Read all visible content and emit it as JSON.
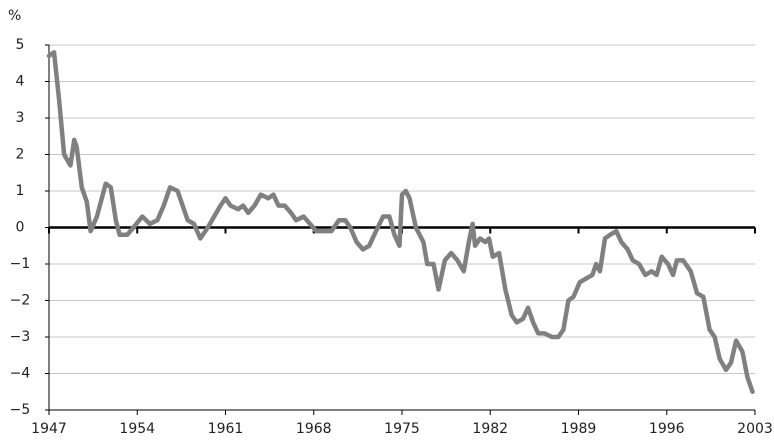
{
  "chart_data": {
    "type": "line",
    "y_unit": "%",
    "x": [
      1947.0,
      1947.4,
      1947.8,
      1948.2,
      1948.7,
      1949.0,
      1949.2,
      1949.6,
      1950.0,
      1950.3,
      1950.8,
      1951.5,
      1951.9,
      1952.3,
      1952.6,
      1953.2,
      1953.7,
      1954.4,
      1955.0,
      1955.6,
      1956.1,
      1956.6,
      1957.2,
      1957.6,
      1958.0,
      1958.5,
      1959.0,
      1959.6,
      1960.1,
      1960.6,
      1961.0,
      1961.4,
      1962.0,
      1962.4,
      1962.8,
      1963.3,
      1963.8,
      1964.4,
      1964.8,
      1965.2,
      1965.7,
      1966.2,
      1966.6,
      1967.2,
      1967.7,
      1968.2,
      1968.8,
      1969.4,
      1970.0,
      1970.5,
      1970.9,
      1971.4,
      1971.9,
      1972.4,
      1972.8,
      1973.5,
      1974.0,
      1974.4,
      1974.8,
      1975.0,
      1975.3,
      1975.6,
      1976.1,
      1976.7,
      1977.0,
      1977.5,
      1977.9,
      1978.4,
      1978.9,
      1979.4,
      1979.9,
      1980.3,
      1980.6,
      1980.8,
      1981.2,
      1981.6,
      1981.9,
      1982.2,
      1982.7,
      1983.2,
      1983.7,
      1984.1,
      1984.6,
      1985.0,
      1985.4,
      1985.8,
      1986.3,
      1986.9,
      1987.4,
      1987.8,
      1988.2,
      1988.6,
      1989.1,
      1989.6,
      1990.1,
      1990.4,
      1990.7,
      1991.1,
      1991.5,
      1992.0,
      1992.4,
      1992.9,
      1993.3,
      1993.8,
      1994.3,
      1994.8,
      1995.2,
      1995.6,
      1996.1,
      1996.5,
      1996.8,
      1997.3,
      1997.9,
      1998.4,
      1998.9,
      1999.4,
      1999.8,
      2000.2,
      2000.7,
      2001.1,
      2001.5,
      2002.0,
      2002.4,
      2002.8
    ],
    "series": [
      {
        "color": "#808080",
        "values": [
          4.7,
          4.8,
          3.5,
          2.0,
          1.7,
          2.4,
          2.2,
          1.1,
          0.7,
          -0.1,
          0.3,
          1.2,
          1.1,
          0.2,
          -0.2,
          -0.2,
          0.0,
          0.3,
          0.1,
          0.2,
          0.6,
          1.1,
          1.0,
          0.6,
          0.2,
          0.1,
          -0.3,
          0.0,
          0.3,
          0.6,
          0.8,
          0.6,
          0.5,
          0.6,
          0.4,
          0.6,
          0.9,
          0.8,
          0.9,
          0.6,
          0.6,
          0.4,
          0.2,
          0.3,
          0.1,
          -0.1,
          -0.1,
          -0.1,
          0.2,
          0.2,
          0.0,
          -0.4,
          -0.6,
          -0.5,
          -0.2,
          0.3,
          0.3,
          -0.2,
          -0.5,
          0.9,
          1.0,
          0.8,
          0.0,
          -0.4,
          -1.0,
          -1.0,
          -1.7,
          -0.9,
          -0.7,
          -0.9,
          -1.2,
          -0.4,
          0.1,
          -0.5,
          -0.3,
          -0.4,
          -0.3,
          -0.8,
          -0.7,
          -1.7,
          -2.4,
          -2.6,
          -2.5,
          -2.2,
          -2.6,
          -2.9,
          -2.9,
          -3.0,
          -3.0,
          -2.8,
          -2.0,
          -1.9,
          -1.5,
          -1.4,
          -1.3,
          -1.0,
          -1.2,
          -0.3,
          -0.2,
          -0.1,
          -0.4,
          -0.6,
          -0.9,
          -1.0,
          -1.3,
          -1.2,
          -1.3,
          -0.8,
          -1.0,
          -1.3,
          -0.9,
          -0.9,
          -1.2,
          -1.8,
          -1.9,
          -2.8,
          -3.0,
          -3.6,
          -3.9,
          -3.7,
          -3.1,
          -3.4,
          -4.1,
          -4.5
        ]
      }
    ],
    "xlim": [
      1947,
      2003
    ],
    "xticks": [
      1947,
      1954,
      1961,
      1968,
      1975,
      1982,
      1989,
      1996,
      2003
    ],
    "ylim": [
      -5,
      5
    ],
    "yticks": [
      {
        "value": -5,
        "label": "−5"
      },
      {
        "value": -4,
        "label": "−4"
      },
      {
        "value": -3,
        "label": "−3"
      },
      {
        "value": -2,
        "label": "−2"
      },
      {
        "value": -1,
        "label": "−1"
      },
      0,
      1,
      2,
      3,
      4,
      5
    ],
    "grid": true
  }
}
